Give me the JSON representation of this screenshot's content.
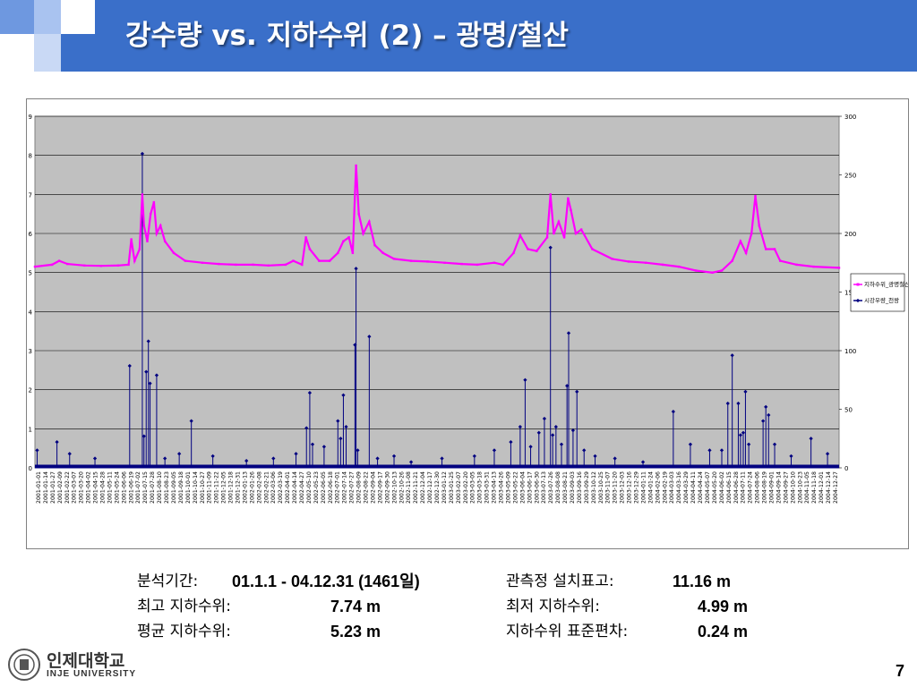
{
  "slide": {
    "title": "강수량 vs. 지하수위 (2) – 광명/철산",
    "page_number": "7",
    "colors": {
      "header": "#3a6fc9",
      "groundwater": "#ff00ff",
      "rainfall": "#000080",
      "plot_bg": "#c0c0c0"
    }
  },
  "stats": {
    "period_label": "분석기간:",
    "period_value": "01.1.1 - 04.12.31 (1461일)",
    "elev_label": "관측정 설치표고:",
    "elev_value": "11.16 m",
    "max_label": "최고 지하수위:",
    "max_value": "7.74 m",
    "min_label": "최저 지하수위:",
    "min_value": "4.99 m",
    "mean_label": "평균 지하수위:",
    "mean_value": "5.23 m",
    "std_label": "지하수위 표준편차:",
    "std_value": "0.24 m"
  },
  "logo": {
    "name_ko": "인제대학교",
    "name_en": "INJE UNIVERSITY",
    "icon": "university-seal-icon"
  },
  "chart_data": {
    "type": "line",
    "title": "",
    "y_left": {
      "ticks": [
        "0",
        "1",
        "2",
        "3",
        "4",
        "5",
        "6",
        "7",
        "8",
        "9"
      ],
      "range": [
        0,
        9
      ]
    },
    "y_right": {
      "ticks": [
        "0",
        "50",
        "100",
        "150",
        "200",
        "250",
        "300"
      ],
      "range": [
        0,
        300
      ]
    },
    "x_tick_labels": [
      "2001-01-01",
      "2001-01-14",
      "2001-01-27",
      "2001-02-09",
      "2001-02-22",
      "2001-03-07",
      "2001-03-20",
      "2001-04-02",
      "2001-04-15",
      "2001-04-28",
      "2001-05-11",
      "2001-05-24",
      "2001-06-06",
      "2001-06-19",
      "2001-07-02",
      "2001-07-15",
      "2001-07-28",
      "2001-08-10",
      "2001-08-23",
      "2001-09-05",
      "2001-09-18",
      "2001-10-01",
      "2001-10-14",
      "2001-10-27",
      "2001-11-09",
      "2001-11-22",
      "2001-12-05",
      "2001-12-18",
      "2001-12-31",
      "2002-01-13",
      "2002-01-26",
      "2002-02-08",
      "2002-02-21",
      "2002-03-06",
      "2002-03-19",
      "2002-04-01",
      "2002-04-14",
      "2002-04-27",
      "2002-05-10",
      "2002-05-23",
      "2002-06-05",
      "2002-06-18",
      "2002-07-01",
      "2002-07-14",
      "2002-07-27",
      "2002-08-09",
      "2002-08-22",
      "2002-09-04",
      "2002-09-17",
      "2002-09-30",
      "2002-10-13",
      "2002-10-26",
      "2002-11-08",
      "2002-11-21",
      "2002-12-04",
      "2002-12-17",
      "2002-12-30",
      "2003-01-12",
      "2003-01-25",
      "2003-02-07",
      "2003-02-20",
      "2003-03-05",
      "2003-03-18",
      "2003-03-31",
      "2003-04-13",
      "2003-04-26",
      "2003-05-09",
      "2003-05-22",
      "2003-06-04",
      "2003-06-17",
      "2003-06-30",
      "2003-07-13",
      "2003-07-26",
      "2003-08-08",
      "2003-08-21",
      "2003-09-03",
      "2003-09-16",
      "2003-09-29",
      "2003-10-12",
      "2003-10-25",
      "2003-11-07",
      "2003-11-20",
      "2003-12-03",
      "2003-12-16",
      "2003-12-29",
      "2004-01-11",
      "2004-01-24",
      "2004-02-06",
      "2004-02-19",
      "2004-03-03",
      "2004-03-16",
      "2004-03-29",
      "2004-04-11",
      "2004-04-24",
      "2004-05-07",
      "2004-05-20",
      "2004-06-02",
      "2004-06-15",
      "2004-06-28",
      "2004-07-11",
      "2004-07-24",
      "2004-08-06",
      "2004-08-19",
      "2004-09-01",
      "2004-09-14",
      "2004-09-27",
      "2004-10-10",
      "2004-10-23",
      "2004-11-05",
      "2004-11-18",
      "2004-12-01",
      "2004-12-14",
      "2004-12-27"
    ],
    "x_range": [
      "2001-01-01",
      "2004-12-31"
    ],
    "grid": true,
    "legend_position": "right",
    "series": [
      {
        "name": "지하수위_광명철산",
        "axis": "left",
        "color": "#ff00ff",
        "marker": "square",
        "points": [
          [
            "2001-01-01",
            5.15
          ],
          [
            "2001-02-01",
            5.2
          ],
          [
            "2001-02-14",
            5.3
          ],
          [
            "2001-03-01",
            5.22
          ],
          [
            "2001-04-01",
            5.18
          ],
          [
            "2001-05-01",
            5.17
          ],
          [
            "2001-06-01",
            5.18
          ],
          [
            "2001-06-20",
            5.2
          ],
          [
            "2001-06-25",
            5.85
          ],
          [
            "2001-07-01",
            5.3
          ],
          [
            "2001-07-10",
            5.6
          ],
          [
            "2001-07-15",
            7.0
          ],
          [
            "2001-07-18",
            6.2
          ],
          [
            "2001-07-24",
            5.8
          ],
          [
            "2001-07-30",
            6.5
          ],
          [
            "2001-08-05",
            6.8
          ],
          [
            "2001-08-10",
            6.0
          ],
          [
            "2001-08-17",
            6.2
          ],
          [
            "2001-08-25",
            5.8
          ],
          [
            "2001-09-10",
            5.5
          ],
          [
            "2001-10-01",
            5.3
          ],
          [
            "2001-11-01",
            5.25
          ],
          [
            "2001-12-01",
            5.22
          ],
          [
            "2002-01-01",
            5.2
          ],
          [
            "2002-02-01",
            5.2
          ],
          [
            "2002-03-01",
            5.18
          ],
          [
            "2002-04-01",
            5.2
          ],
          [
            "2002-04-15",
            5.3
          ],
          [
            "2002-05-01",
            5.2
          ],
          [
            "2002-05-08",
            5.9
          ],
          [
            "2002-05-15",
            5.6
          ],
          [
            "2002-06-01",
            5.3
          ],
          [
            "2002-06-20",
            5.3
          ],
          [
            "2002-07-05",
            5.5
          ],
          [
            "2002-07-15",
            5.8
          ],
          [
            "2002-07-25",
            5.9
          ],
          [
            "2002-08-01",
            5.5
          ],
          [
            "2002-08-07",
            7.74
          ],
          [
            "2002-08-12",
            6.5
          ],
          [
            "2002-08-20",
            6.0
          ],
          [
            "2002-08-31",
            6.3
          ],
          [
            "2002-09-10",
            5.7
          ],
          [
            "2002-09-25",
            5.5
          ],
          [
            "2002-10-15",
            5.35
          ],
          [
            "2002-11-15",
            5.3
          ],
          [
            "2002-12-15",
            5.28
          ],
          [
            "2003-01-15",
            5.25
          ],
          [
            "2003-02-15",
            5.22
          ],
          [
            "2003-03-15",
            5.2
          ],
          [
            "2003-04-15",
            5.25
          ],
          [
            "2003-05-01",
            5.2
          ],
          [
            "2003-05-20",
            5.5
          ],
          [
            "2003-06-01",
            5.95
          ],
          [
            "2003-06-15",
            5.6
          ],
          [
            "2003-07-01",
            5.55
          ],
          [
            "2003-07-20",
            5.9
          ],
          [
            "2003-07-26",
            7.0
          ],
          [
            "2003-08-01",
            6.0
          ],
          [
            "2003-08-10",
            6.3
          ],
          [
            "2003-08-20",
            5.9
          ],
          [
            "2003-08-27",
            6.9
          ],
          [
            "2003-09-01",
            6.6
          ],
          [
            "2003-09-10",
            6.0
          ],
          [
            "2003-09-20",
            6.1
          ],
          [
            "2003-10-10",
            5.6
          ],
          [
            "2003-11-15",
            5.35
          ],
          [
            "2003-12-15",
            5.28
          ],
          [
            "2004-01-15",
            5.25
          ],
          [
            "2004-02-15",
            5.2
          ],
          [
            "2004-03-15",
            5.15
          ],
          [
            "2004-04-15",
            5.05
          ],
          [
            "2004-05-15",
            5.0
          ],
          [
            "2004-06-01",
            5.05
          ],
          [
            "2004-06-20",
            5.3
          ],
          [
            "2004-07-05",
            5.8
          ],
          [
            "2004-07-15",
            5.5
          ],
          [
            "2004-07-25",
            6.0
          ],
          [
            "2004-08-01",
            6.96
          ],
          [
            "2004-08-08",
            6.2
          ],
          [
            "2004-08-20",
            5.6
          ],
          [
            "2004-09-05",
            5.6
          ],
          [
            "2004-09-15",
            5.3
          ],
          [
            "2004-10-15",
            5.2
          ],
          [
            "2004-11-15",
            5.15
          ],
          [
            "2004-12-31",
            5.12
          ]
        ]
      },
      {
        "name": "시강우량_천왕",
        "axis": "right",
        "color": "#000080",
        "marker": "diamond",
        "points": [
          [
            "2001-01-05",
            15
          ],
          [
            "2001-02-10",
            22
          ],
          [
            "2001-03-05",
            12
          ],
          [
            "2001-04-20",
            8
          ],
          [
            "2001-06-22",
            87
          ],
          [
            "2001-07-15",
            268
          ],
          [
            "2001-07-18",
            27
          ],
          [
            "2001-07-22",
            82
          ],
          [
            "2001-07-26",
            108
          ],
          [
            "2001-07-29",
            72
          ],
          [
            "2001-08-10",
            79
          ],
          [
            "2001-08-25",
            8
          ],
          [
            "2001-09-20",
            12
          ],
          [
            "2001-10-12",
            40
          ],
          [
            "2001-11-20",
            10
          ],
          [
            "2002-01-20",
            6
          ],
          [
            "2002-03-10",
            8
          ],
          [
            "2002-04-20",
            12
          ],
          [
            "2002-05-09",
            34
          ],
          [
            "2002-05-15",
            64
          ],
          [
            "2002-05-20",
            20
          ],
          [
            "2002-06-10",
            18
          ],
          [
            "2002-07-05",
            40
          ],
          [
            "2002-07-10",
            25
          ],
          [
            "2002-07-15",
            62
          ],
          [
            "2002-07-20",
            35
          ],
          [
            "2002-08-05",
            105
          ],
          [
            "2002-08-07",
            170
          ],
          [
            "2002-08-10",
            15
          ],
          [
            "2002-08-31",
            112
          ],
          [
            "2002-09-15",
            8
          ],
          [
            "2002-10-15",
            10
          ],
          [
            "2002-11-15",
            5
          ],
          [
            "2003-01-10",
            8
          ],
          [
            "2003-03-10",
            10
          ],
          [
            "2003-04-15",
            15
          ],
          [
            "2003-05-15",
            22
          ],
          [
            "2003-06-01",
            35
          ],
          [
            "2003-06-10",
            75
          ],
          [
            "2003-06-20",
            18
          ],
          [
            "2003-07-05",
            30
          ],
          [
            "2003-07-15",
            42
          ],
          [
            "2003-07-26",
            188
          ],
          [
            "2003-07-30",
            28
          ],
          [
            "2003-08-05",
            35
          ],
          [
            "2003-08-15",
            20
          ],
          [
            "2003-08-25",
            70
          ],
          [
            "2003-08-28",
            115
          ],
          [
            "2003-09-05",
            32
          ],
          [
            "2003-09-12",
            65
          ],
          [
            "2003-09-25",
            15
          ],
          [
            "2003-10-15",
            10
          ],
          [
            "2003-11-20",
            8
          ],
          [
            "2004-01-10",
            5
          ],
          [
            "2004-03-05",
            48
          ],
          [
            "2004-04-05",
            20
          ],
          [
            "2004-05-10",
            15
          ],
          [
            "2004-06-01",
            15
          ],
          [
            "2004-06-12",
            55
          ],
          [
            "2004-06-20",
            96
          ],
          [
            "2004-07-01",
            55
          ],
          [
            "2004-07-05",
            28
          ],
          [
            "2004-07-10",
            30
          ],
          [
            "2004-07-14",
            65
          ],
          [
            "2004-07-20",
            20
          ],
          [
            "2004-08-15",
            40
          ],
          [
            "2004-08-20",
            52
          ],
          [
            "2004-08-25",
            45
          ],
          [
            "2004-09-05",
            20
          ],
          [
            "2004-10-05",
            10
          ],
          [
            "2004-11-10",
            25
          ],
          [
            "2004-12-10",
            12
          ]
        ]
      }
    ]
  }
}
